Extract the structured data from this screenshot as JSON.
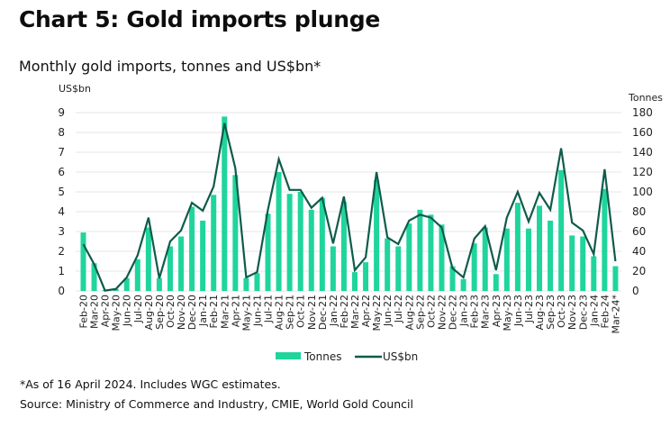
{
  "title": "Chart 5: Gold imports plunge",
  "subtitle": "Monthly gold imports, tonnes and US$bn*",
  "footnotes": [
    "*As of 16 April 2024. Includes WGC estimates.",
    "Source: Ministry of Commerce and Industry, CMIE, World Gold Council"
  ],
  "colors": {
    "bars": "#1fd59c",
    "line": "#0f5b4b",
    "grid": "#e6e6e6"
  },
  "chart_data": {
    "type": "bar+line",
    "title": "Chart 5: Gold imports plunge",
    "subtitle": "Monthly gold imports, tonnes and US$bn*",
    "categories": [
      "Feb-20",
      "Mar-20",
      "Apr-20",
      "May-20",
      "Jun-20",
      "Jul-20",
      "Aug-20",
      "Sep-20",
      "Oct-20",
      "Nov-20",
      "Dec-20",
      "Jan-21",
      "Feb-21",
      "Mar-21",
      "Apr-21",
      "May-21",
      "Jun-21",
      "Jul-21",
      "Aug-21",
      "Sep-21",
      "Oct-21",
      "Nov-21",
      "Dec-21",
      "Jan-22",
      "Feb-22",
      "Mar-22",
      "Apr-22",
      "May-22",
      "Jun-22",
      "Jul-22",
      "Aug-22",
      "Sep-22",
      "Oct-22",
      "Nov-22",
      "Dec-22",
      "Jan-23",
      "Feb-23",
      "Mar-23",
      "Apr-23",
      "May-23",
      "Jun-23",
      "Jul-23",
      "Aug-23",
      "Sep-23",
      "Oct-23",
      "Nov-23",
      "Dec-23",
      "Jan-24",
      "Feb-24",
      "Mar-24*"
    ],
    "series": [
      {
        "name": "Tonnes",
        "type": "bar",
        "axis": "right",
        "values": [
          59,
          28,
          1,
          2,
          13,
          32,
          64,
          13,
          45,
          55,
          85,
          71,
          97,
          176,
          117,
          13,
          18,
          78,
          120,
          98,
          100,
          82,
          94,
          45,
          90,
          19,
          29,
          112,
          53,
          45,
          68,
          82,
          77,
          67,
          25,
          12,
          48,
          64,
          17,
          63,
          89,
          63,
          86,
          71,
          122,
          56,
          55,
          35,
          103,
          25
        ]
      },
      {
        "name": "US$bn",
        "type": "line",
        "axis": "left",
        "values": [
          2.36,
          1.35,
          0.02,
          0.1,
          0.68,
          1.8,
          3.7,
          0.64,
          2.5,
          3.05,
          4.45,
          4.05,
          5.27,
          8.47,
          6.2,
          0.68,
          0.95,
          4.1,
          6.65,
          5.1,
          5.1,
          4.2,
          4.7,
          2.4,
          4.77,
          1.05,
          1.7,
          6.0,
          2.7,
          2.37,
          3.55,
          3.85,
          3.7,
          3.2,
          1.14,
          0.68,
          2.64,
          3.27,
          1.05,
          3.7,
          5.0,
          3.5,
          4.95,
          4.1,
          7.2,
          3.45,
          3.05,
          1.86,
          6.14,
          1.5
        ]
      }
    ],
    "y_left": {
      "label": "US$bn",
      "ylim": [
        0,
        9
      ],
      "ticks": [
        0,
        1,
        2,
        3,
        4,
        5,
        6,
        7,
        8,
        9
      ]
    },
    "y_right": {
      "label": "Tonnes",
      "ylim": [
        0,
        180
      ],
      "ticks": [
        0,
        20,
        40,
        60,
        80,
        100,
        120,
        140,
        160,
        180
      ]
    },
    "grid": true,
    "legend": {
      "placement": "bottom-center",
      "entries": [
        "Tonnes",
        "US$bn"
      ]
    }
  }
}
